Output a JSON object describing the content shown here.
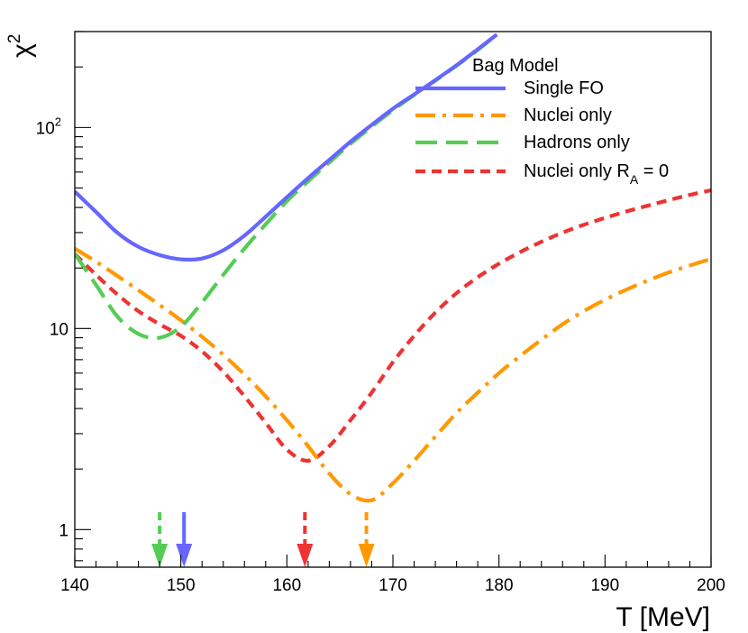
{
  "chart_data": {
    "type": "line",
    "xlabel": "T [MeV]",
    "ylabel": "χ",
    "ylabel_sup": "2",
    "xlim": [
      140,
      200
    ],
    "ylim": [
      0.65,
      300
    ],
    "y_scale": "log",
    "x_major_ticks": [
      140,
      150,
      160,
      170,
      180,
      190,
      200
    ],
    "x_tick_labels": [
      "140",
      "150",
      "160",
      "170",
      "180",
      "190",
      "200"
    ],
    "y_major_ticks": [
      1,
      10,
      100
    ],
    "y_tick_labels": [
      "1",
      "10",
      "10"
    ],
    "y_tick_sup": [
      "",
      "",
      "2"
    ],
    "grid": false,
    "legend": {
      "title": "Bag Model",
      "placement": "top-right",
      "entries": [
        {
          "text": "Single FO",
          "sub": "",
          "suffix": ""
        },
        {
          "text": "Nuclei only",
          "sub": "",
          "suffix": ""
        },
        {
          "text": "Hadrons only",
          "sub": "",
          "suffix": ""
        },
        {
          "text": "Nuclei only R",
          "sub": "A",
          "suffix": " = 0"
        }
      ]
    },
    "series": [
      {
        "name": "Single FO",
        "color": "#6666ff",
        "dash": "solid",
        "x": [
          140,
          142,
          144,
          146,
          148,
          150,
          152,
          154,
          156,
          158,
          160,
          162,
          164,
          166,
          168,
          170,
          172,
          174,
          176,
          178,
          179.8
        ],
        "y": [
          48,
          38,
          30,
          25.5,
          23.2,
          22.1,
          22.3,
          24.5,
          29,
          36,
          45,
          56,
          69,
          85,
          103,
          124,
          146,
          172,
          204,
          245,
          290
        ]
      },
      {
        "name": "Nuclei only",
        "color": "#ff9900",
        "dash": "dashdot",
        "x": [
          140,
          142,
          144,
          146,
          148,
          150,
          152,
          154,
          156,
          158,
          160,
          162,
          164,
          166,
          168,
          170,
          172,
          174,
          176,
          178,
          180,
          182,
          184,
          186,
          188,
          190,
          192,
          194,
          196,
          198,
          200
        ],
        "y": [
          25,
          21.5,
          18.3,
          15.5,
          13.1,
          11,
          9.1,
          7.4,
          5.9,
          4.6,
          3.5,
          2.6,
          1.9,
          1.5,
          1.4,
          1.7,
          2.2,
          2.9,
          3.8,
          4.8,
          6.0,
          7.3,
          8.8,
          10.5,
          12.2,
          13.9,
          15.6,
          17.3,
          19.0,
          20.6,
          22.2
        ]
      },
      {
        "name": "Hadrons only",
        "color": "#55cc55",
        "dash": "longdash",
        "x": [
          140,
          142,
          144,
          146,
          148,
          150,
          152,
          154,
          156,
          158,
          160,
          162,
          164,
          166,
          168,
          170,
          172,
          174,
          176,
          178,
          179.8
        ],
        "y": [
          23.5,
          16.5,
          11.5,
          9.4,
          9.0,
          10.2,
          13.5,
          18.5,
          25,
          33,
          43,
          54,
          67,
          83,
          101,
          122,
          145,
          171,
          203,
          243,
          290
        ]
      },
      {
        "name": "Nuclei only R_A = 0",
        "color": "#ee3333",
        "dash": "dash",
        "x": [
          140,
          142,
          144,
          146,
          148,
          150,
          152,
          154,
          156,
          158,
          160,
          162,
          164,
          166,
          168,
          170,
          172,
          174,
          176,
          178,
          180,
          182,
          184,
          186,
          188,
          190,
          192,
          194,
          196,
          198,
          200
        ],
        "y": [
          23.5,
          18.5,
          14.8,
          12.2,
          10.5,
          9.2,
          7.7,
          6.1,
          4.6,
          3.4,
          2.5,
          2.2,
          2.6,
          3.5,
          4.8,
          6.8,
          9.2,
          12.0,
          15.0,
          18.0,
          21.0,
          24.0,
          27.0,
          30.0,
          32.8,
          35.5,
          38.2,
          40.8,
          43.5,
          46.2,
          48.7
        ]
      }
    ],
    "minima_markers": [
      {
        "series": "Hadrons only",
        "x": 148,
        "color": "#55cc55",
        "style": "dashed"
      },
      {
        "series": "Single FO",
        "x": 150.3,
        "color": "#6666ff",
        "style": "solid"
      },
      {
        "series": "Nuclei only R_A = 0",
        "x": 161.7,
        "color": "#ee3333",
        "style": "dashed"
      },
      {
        "series": "Nuclei only",
        "x": 167.5,
        "color": "#ff9900",
        "style": "dashed"
      }
    ]
  }
}
